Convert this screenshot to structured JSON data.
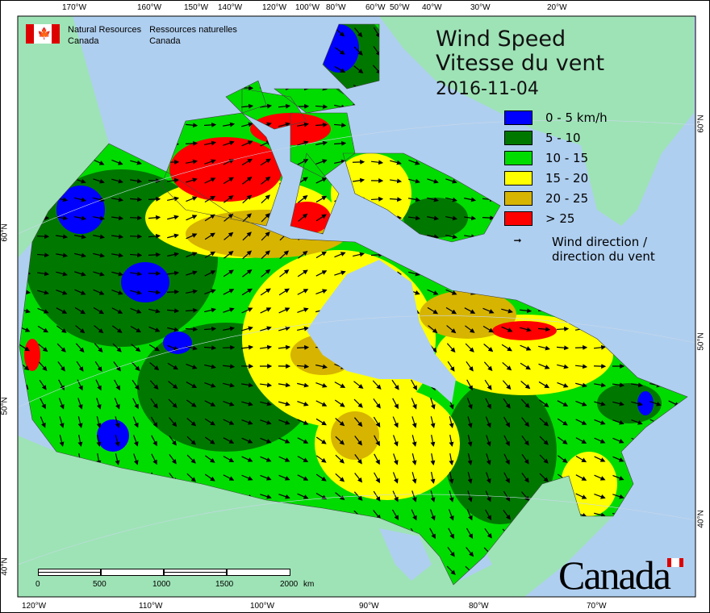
{
  "title": {
    "line1": "Wind Speed",
    "line2": "Vitesse du vent",
    "date": "2016-11-04"
  },
  "agency": {
    "en_line1": "Natural Resources",
    "en_line2": "Canada",
    "fr_line1": "Ressources naturelles",
    "fr_line2": "Canada"
  },
  "wordmark": "Canada",
  "legend": {
    "classes": [
      {
        "label": "0 - 5 km/h",
        "color": "#0000ff"
      },
      {
        "label": "5 - 10",
        "color": "#007800"
      },
      {
        "label": "10 - 15",
        "color": "#00dc00"
      },
      {
        "label": "15 - 20",
        "color": "#ffff00"
      },
      {
        "label": "20 - 25",
        "color": "#d7b400"
      },
      {
        "label": "> 25",
        "color": "#ff0000"
      }
    ],
    "wind_line1": "Wind direction /",
    "wind_line2": "direction du vent",
    "wind_icon": "arrow-icon"
  },
  "graticule": {
    "top": [
      "170°W",
      "160°W",
      "150°W",
      "140°W",
      "120°W",
      "100°W",
      "80°W",
      "60°W",
      "50°W",
      "40°W",
      "30°W",
      "20°W"
    ],
    "bottom": [
      "120°W",
      "110°W",
      "100°W",
      "90°W",
      "80°W",
      "70°W"
    ],
    "left": [
      "60°N",
      "50°N",
      "40°N"
    ],
    "right": [
      "60°N",
      "50°N",
      "40°N"
    ]
  },
  "scale_bar": {
    "labels": [
      "0",
      "500",
      "1000",
      "1500",
      "2000"
    ],
    "unit": "km"
  },
  "colors": {
    "ocean": "#afcff0",
    "land": "#9ee3b6"
  }
}
